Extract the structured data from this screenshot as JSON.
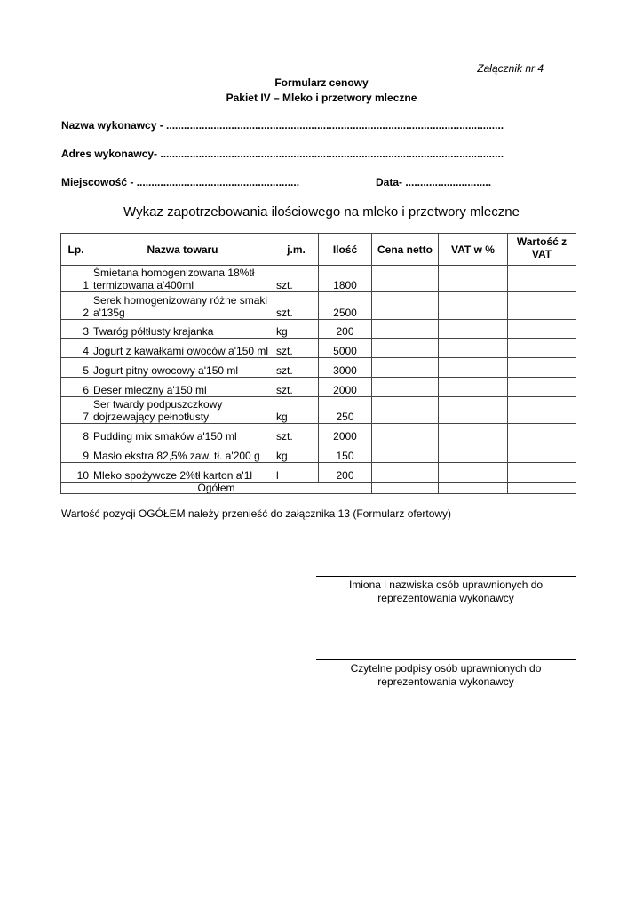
{
  "annex": "Załącznik nr  4",
  "title": "Formularz cenowy",
  "subtitle": "Pakiet IV – Mleko i przetwory mleczne",
  "fields": {
    "contractor_name": "Nazwa wykonawcy - ..................................................................................................................",
    "contractor_address": "Adres wykonawcy- ....................................................................................................................",
    "place": "Miejscowość - .......................................................",
    "date": "Data- ............................."
  },
  "heading": "Wykaz zapotrzebowania ilościowego na mleko i przetwory mleczne",
  "table": {
    "headers": [
      "Lp.",
      "Nazwa towaru",
      "j.m.",
      "Ilość",
      "Cena netto",
      "VAT w %",
      "Wartość z VAT"
    ],
    "rows": [
      {
        "lp": "1",
        "name": "Śmietana homogenizowana 18%tł termizowana a'400ml",
        "unit": "szt.",
        "qty": "1800"
      },
      {
        "lp": "2",
        "name": "Serek homogenizowany różne smaki a'135g",
        "unit": "szt.",
        "qty": "2500"
      },
      {
        "lp": "3",
        "name": "Twaróg półtłusty krajanka",
        "unit": "kg",
        "qty": "200"
      },
      {
        "lp": "4",
        "name": "Jogurt z kawałkami owoców a'150 ml",
        "unit": "szt.",
        "qty": "5000"
      },
      {
        "lp": "5",
        "name": "Jogurt pitny owocowy a'150 ml",
        "unit": "szt.",
        "qty": "3000"
      },
      {
        "lp": "6",
        "name": "Deser mleczny a'150 ml",
        "unit": "szt.",
        "qty": "2000"
      },
      {
        "lp": "7",
        "name": "Ser twardy podpuszczkowy dojrzewający pełnotłusty",
        "unit": "kg",
        "qty": "250"
      },
      {
        "lp": "8",
        "name": "Pudding mix smaków a'150 ml",
        "unit": "szt.",
        "qty": "2000"
      },
      {
        "lp": "9",
        "name": "Masło ekstra 82,5% zaw. tł. a'200 g",
        "unit": "kg",
        "qty": "150"
      },
      {
        "lp": "10",
        "name": "Mleko spożywcze 2%tł karton a'1l",
        "unit": "l",
        "qty": "200"
      }
    ],
    "total_label": "Ogółem"
  },
  "note": "Wartość pozycji OGÓŁEM należy przenieść do załącznika 13 (Formularz ofertowy)",
  "signatures": [
    "Imiona i nazwiska osób uprawnionych do reprezentowania wykonawcy",
    "Czytelne podpisy osób uprawnionych do reprezentowania wykonawcy"
  ]
}
